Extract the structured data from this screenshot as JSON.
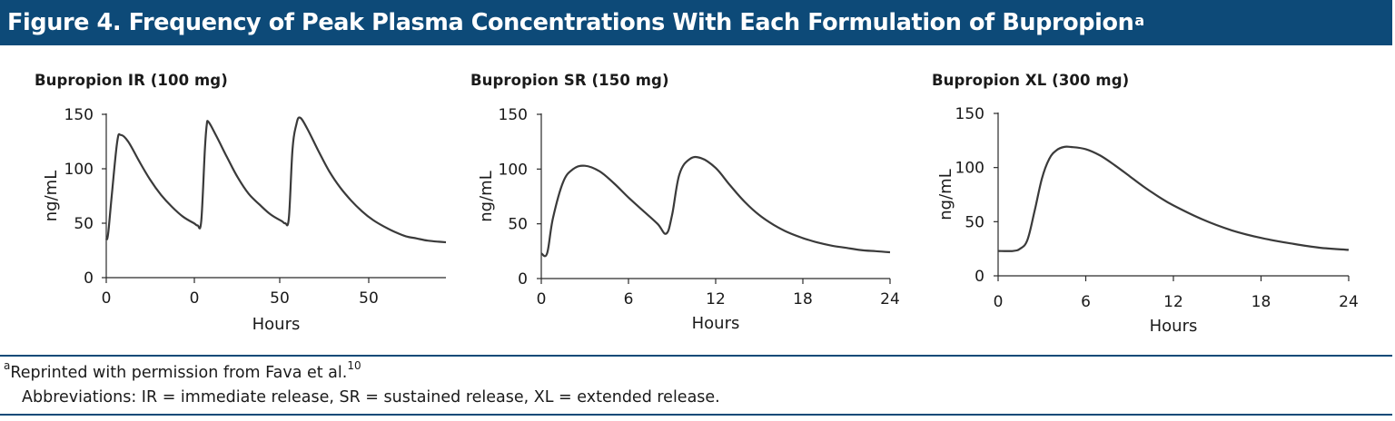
{
  "header": {
    "title": "Figure 4. Frequency of Peak Plasma Concentrations With Each Formulation of Bupropion",
    "title_sup": "a",
    "bg_color": "#0d4a78"
  },
  "footnotes": {
    "ref_marker": "a",
    "reprint_text": "Reprinted with permission from Fava et al.",
    "reprint_ref": "10",
    "abbreviations": "Abbreviations: IR = immediate release, SR = sustained release, XL = extended release."
  },
  "chart_data": [
    {
      "type": "line",
      "title": "Bupropion IR (100 mg)",
      "xlabel": "Hours",
      "ylabel": "ng/mL",
      "ylim": [
        0,
        150
      ],
      "yticks": [
        0,
        50,
        100,
        150
      ],
      "xticks": [
        "0",
        "0",
        "50",
        "50"
      ],
      "grid": false,
      "series": [
        {
          "x": [
            0,
            0.5,
            1.5,
            3,
            4,
            6,
            9,
            12,
            15,
            18,
            21,
            24,
            25,
            26,
            27,
            27.5,
            28,
            30,
            33,
            36,
            39,
            42,
            45,
            48,
            49,
            50,
            51,
            52,
            53,
            55,
            58,
            61,
            64,
            67,
            70,
            73,
            76,
            79,
            82,
            85,
            88,
            91,
            93
          ],
          "y": [
            35,
            40,
            75,
            125,
            131,
            125,
            107,
            90,
            76,
            65,
            56,
            50,
            48,
            52,
            118,
            140,
            143,
            131,
            111,
            92,
            77,
            67,
            58,
            52,
            50,
            55,
            118,
            140,
            147,
            137,
            117,
            98,
            83,
            71,
            61,
            53,
            47,
            42,
            38,
            36,
            34,
            33,
            32.5
          ]
        }
      ]
    },
    {
      "type": "line",
      "title": "Bupropion SR (150 mg)",
      "xlabel": "Hours",
      "ylabel": "ng/mL",
      "xlim": [
        0,
        24
      ],
      "xticks": [
        0,
        6,
        12,
        18,
        24
      ],
      "ylim": [
        0,
        150
      ],
      "yticks": [
        0,
        50,
        100,
        150
      ],
      "grid": false,
      "series": [
        {
          "x": [
            0,
            0.4,
            0.8,
            1.5,
            2.2,
            3,
            4,
            5,
            6,
            7,
            8,
            8.6,
            9,
            9.5,
            10.2,
            11,
            12,
            13,
            14,
            15,
            16,
            17,
            18,
            19,
            20,
            21,
            22,
            23,
            24
          ],
          "y": [
            23,
            23,
            55,
            88,
            100,
            103,
            98,
            87,
            74,
            62,
            50,
            41,
            58,
            95,
            109,
            110,
            101,
            85,
            70,
            58,
            49,
            42,
            37,
            33,
            30,
            28,
            26,
            25,
            24
          ]
        }
      ]
    },
    {
      "type": "line",
      "title": "Bupropion XL (300 mg)",
      "xlabel": "Hours",
      "ylabel": "ng/mL",
      "xlim": [
        0,
        24
      ],
      "xticks": [
        0,
        6,
        12,
        18,
        24
      ],
      "ylim": [
        0,
        150
      ],
      "yticks": [
        0,
        50,
        100,
        150
      ],
      "grid": false,
      "series": [
        {
          "x": [
            0,
            1,
            1.5,
            2,
            2.5,
            3,
            3.5,
            4,
            4.5,
            5,
            6,
            7,
            8,
            9,
            10,
            11,
            12,
            14,
            16,
            18,
            20,
            22,
            24
          ],
          "y": [
            23,
            23,
            25,
            33,
            60,
            90,
            108,
            116,
            119,
            119,
            117,
            111,
            102,
            92,
            82,
            73,
            65,
            52,
            42,
            35,
            30,
            26,
            24
          ]
        }
      ]
    }
  ]
}
